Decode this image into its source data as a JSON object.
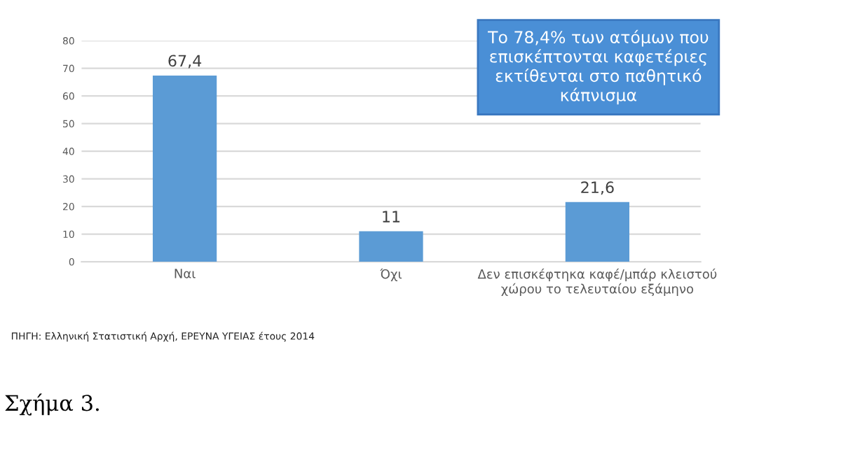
{
  "chart_data": {
    "type": "bar",
    "categories": [
      "Ναι",
      "Όχι",
      "Δεν επισκέφτηκα καφέ/μπάρ κλειστού χώρου το τελευταίου εξάμηνο"
    ],
    "values": [
      67.4,
      11,
      21.6
    ],
    "color": "#5b9bd5",
    "ylim": [
      0,
      80
    ],
    "yticks": [
      0,
      10,
      20,
      30,
      40,
      50,
      60,
      70,
      80
    ],
    "grid": "y",
    "value_labels": [
      "67,4",
      "11",
      "21,6"
    ],
    "annotations": [
      "Το 78,4% των ατόμων που επισκέπτονται καφετέριες εκτίθενται στο παθητικό κάπνισμα",
      "ΠΗΓΗ: Ελληνική Στατιστική Αρχή, ΕΡΕΥΝΑ ΥΓΕΙΑΣ έτους 2014",
      "Σχήμα 3."
    ]
  }
}
